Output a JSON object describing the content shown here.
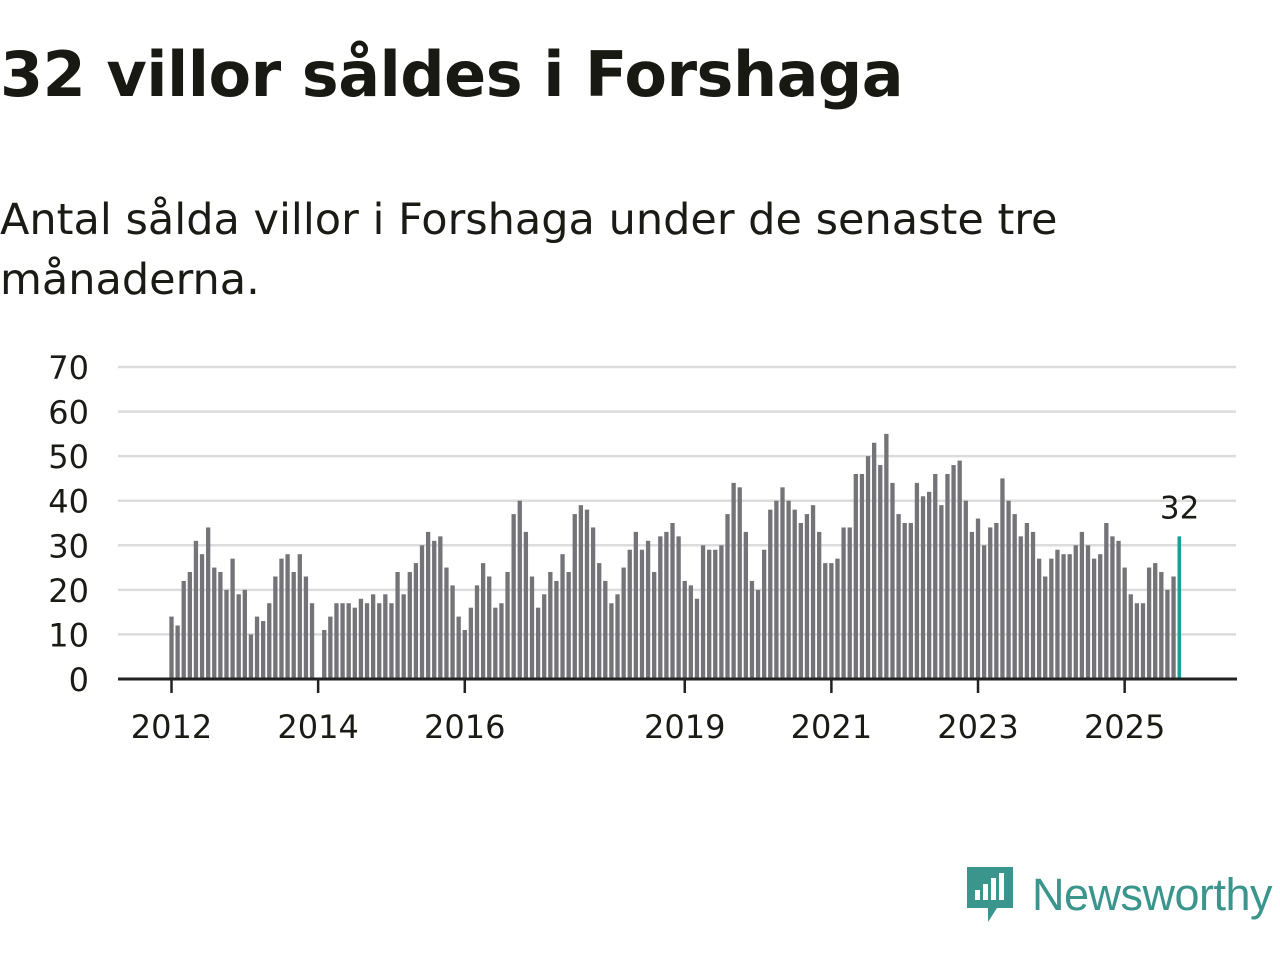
{
  "title": "32 villor såldes i Forshaga",
  "subtitle": "Antal sålda villor i Forshaga under de senaste tre månaderna.",
  "brand": {
    "name": "Newsworthy",
    "color": "#3a958c",
    "icon": "newsworthy-logo-icon"
  },
  "colors": {
    "bar": "#737378",
    "highlight": "#1a9e95",
    "grid": "#dcdcdc",
    "axis": "#222222",
    "text": "#1b1b16"
  },
  "chart_data": {
    "type": "bar",
    "title": "32 villor såldes i Forshaga",
    "xlabel": "",
    "ylabel": "",
    "ylim": [
      0,
      70
    ],
    "yticks": [
      0,
      10,
      20,
      30,
      40,
      50,
      60,
      70
    ],
    "grid": true,
    "xtick_labels": [
      {
        "label": "2012",
        "index": 0
      },
      {
        "label": "2014",
        "index": 24
      },
      {
        "label": "2016",
        "index": 48
      },
      {
        "label": "2019",
        "index": 84
      },
      {
        "label": "2021",
        "index": 108
      },
      {
        "label": "2023",
        "index": 132
      },
      {
        "label": "2025",
        "index": 156
      }
    ],
    "highlight": {
      "index": 165,
      "label": "32"
    },
    "values": [
      14,
      12,
      22,
      24,
      31,
      28,
      34,
      25,
      24,
      20,
      27,
      19,
      20,
      10,
      14,
      13,
      17,
      23,
      27,
      28,
      24,
      28,
      23,
      17,
      0,
      11,
      14,
      17,
      17,
      17,
      16,
      18,
      17,
      19,
      17,
      19,
      17,
      24,
      19,
      24,
      26,
      30,
      33,
      31,
      32,
      25,
      21,
      14,
      11,
      16,
      21,
      26,
      23,
      16,
      17,
      24,
      37,
      40,
      33,
      23,
      16,
      19,
      24,
      22,
      28,
      24,
      37,
      39,
      38,
      34,
      26,
      22,
      17,
      19,
      25,
      29,
      33,
      29,
      31,
      24,
      32,
      33,
      35,
      32,
      22,
      21,
      18,
      30,
      29,
      29,
      30,
      37,
      44,
      43,
      33,
      22,
      20,
      29,
      38,
      40,
      43,
      40,
      38,
      35,
      37,
      39,
      33,
      26,
      26,
      27,
      34,
      34,
      46,
      46,
      50,
      53,
      48,
      55,
      44,
      37,
      35,
      35,
      44,
      41,
      42,
      46,
      39,
      46,
      48,
      49,
      40,
      33,
      36,
      30,
      34,
      35,
      45,
      40,
      37,
      32,
      35,
      33,
      27,
      23,
      27,
      29,
      28,
      28,
      30,
      33,
      30,
      27,
      28,
      35,
      32,
      31,
      25,
      19,
      17,
      17,
      25,
      26,
      24,
      20,
      23,
      32
    ]
  }
}
